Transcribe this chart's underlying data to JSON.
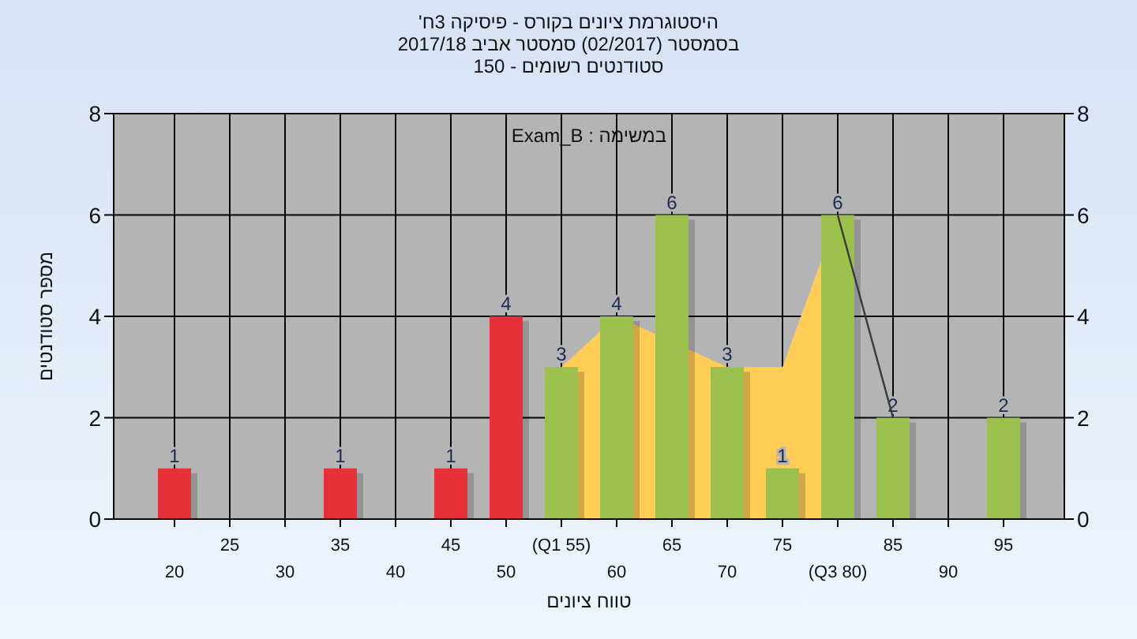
{
  "chart_data": {
    "type": "bar",
    "title": "היסטוגרמת ציונים בקורס - פיסיקה 3ח'",
    "subtitle": "בסמסטר  (02/2017)  סמסטר אביב 2017/18\nסטודנטים רשומים - 150",
    "xlabel": "טווח ציונים",
    "ylabel": "מספר סטודנטים",
    "annotations": [
      "במשימה : Exam_B"
    ],
    "categories": [
      "20",
      "25",
      "30",
      "35",
      "40",
      "45",
      "50",
      "(Q1 55)",
      "60",
      "65",
      "70",
      "75",
      "(Q3 80)",
      "85",
      "90",
      "95"
    ],
    "series": [
      {
        "type": "area",
        "color": "#ffcc55",
        "values": [
          null,
          null,
          null,
          null,
          null,
          null,
          null,
          3,
          4,
          null,
          3,
          3,
          6,
          null,
          null,
          null
        ]
      },
      {
        "type": "line",
        "color": "#3a3a3a",
        "values": [
          null,
          null,
          null,
          null,
          null,
          null,
          null,
          null,
          null,
          null,
          null,
          null,
          6,
          2,
          null,
          null
        ]
      },
      {
        "colors": [
          "#e83038",
          null,
          null,
          "#e83038",
          null,
          "#e83038",
          "#e83038",
          "#9cc04c",
          "#9cc04c",
          "#9cc04c",
          "#9cc04c",
          "#9cc04c",
          "#9cc04c",
          "#9cc04c",
          null,
          "#9cc04c"
        ],
        "values": [
          1,
          null,
          null,
          1,
          null,
          1,
          4,
          3,
          4,
          6,
          3,
          1,
          6,
          2,
          null,
          2
        ],
        "value_labels": [
          "1",
          null,
          null,
          "1",
          null,
          "1",
          "4",
          "3",
          "4",
          "6",
          "3",
          "1",
          "6",
          "2",
          null,
          "2"
        ]
      }
    ],
    "ylim": [
      0,
      8
    ],
    "yticks": [
      0,
      2,
      4,
      6,
      8
    ],
    "y2lim": [
      0,
      8
    ],
    "y2ticks": [
      0,
      2,
      4,
      6,
      8
    ],
    "grid": true
  }
}
